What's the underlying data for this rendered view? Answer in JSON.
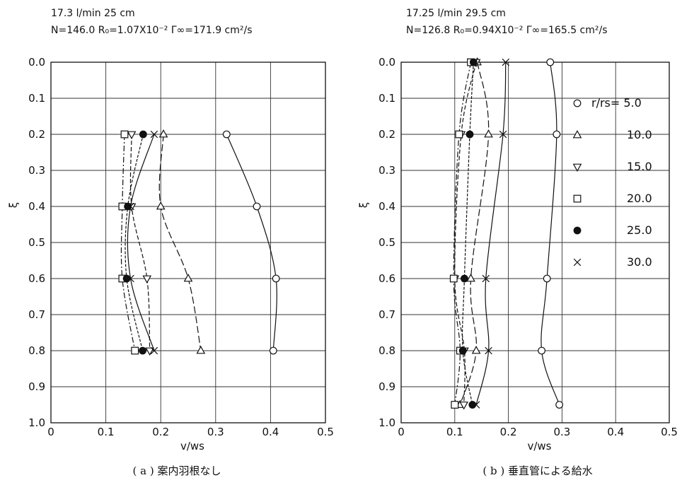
{
  "chart_data": [
    {
      "type": "line",
      "header": [
        "17.3 l/min      25 cm",
        "N=146.0    R₀=1.07X10⁻²   Γ∞=171.9 cm²/s"
      ],
      "xlabel": "v/ws",
      "ylabel": "ξ",
      "caption": "( a ) 案内羽根なし",
      "xlim": [
        0,
        0.5
      ],
      "ylim": [
        0,
        1.0
      ],
      "y_inverted": true,
      "x_ticks": [
        "0",
        "0.1",
        "0.2",
        "0.3",
        "0.4",
        "0.5"
      ],
      "y_ticks": [
        "0.0",
        "0.1",
        "0.2",
        "0.3",
        "0.4",
        "0.5",
        "0.6",
        "0.7",
        "0.8",
        "0.9",
        "1.0"
      ],
      "grid": true,
      "series": [
        {
          "marker": "circle-open",
          "dash": "",
          "points": [
            [
              0.32,
              0.2
            ],
            [
              0.375,
              0.4
            ],
            [
              0.41,
              0.6
            ],
            [
              0.405,
              0.8
            ]
          ]
        },
        {
          "marker": "triangle-up",
          "dash": "10 4",
          "points": [
            [
              0.205,
              0.2
            ],
            [
              0.2,
              0.4
            ],
            [
              0.25,
              0.6
            ],
            [
              0.273,
              0.8
            ]
          ]
        },
        {
          "marker": "triangle-down",
          "dash": "6 3",
          "points": [
            [
              0.147,
              0.2
            ],
            [
              0.147,
              0.4
            ],
            [
              0.175,
              0.6
            ],
            [
              0.18,
              0.8
            ]
          ]
        },
        {
          "marker": "square",
          "dash": "8 3 2 3",
          "points": [
            [
              0.134,
              0.2
            ],
            [
              0.13,
              0.4
            ],
            [
              0.13,
              0.6
            ],
            [
              0.153,
              0.8
            ]
          ]
        },
        {
          "marker": "circle-filled",
          "dash": "4 2",
          "points": [
            [
              0.168,
              0.2
            ],
            [
              0.14,
              0.4
            ],
            [
              0.138,
              0.6
            ],
            [
              0.167,
              0.8
            ]
          ]
        },
        {
          "marker": "cross",
          "dash": "",
          "points": [
            [
              0.188,
              0.2
            ],
            [
              0.145,
              0.4
            ],
            [
              0.145,
              0.6
            ],
            [
              0.188,
              0.8
            ]
          ]
        }
      ]
    },
    {
      "type": "line",
      "header": [
        "17.25 l/min     29.5 cm",
        "N=126.8   R₀=0.94X10⁻²  Γ∞=165.5 cm²/s"
      ],
      "xlabel": "v/ws",
      "ylabel": "ξ",
      "caption": "( b ) 垂直管による給水",
      "xlim": [
        0,
        0.5
      ],
      "ylim": [
        0,
        1.0
      ],
      "y_inverted": true,
      "x_ticks": [
        "0",
        "0.1",
        "0.2",
        "0.3",
        "0.4",
        "0.5"
      ],
      "y_ticks": [
        "0.0",
        "0.1",
        "0.2",
        "0.3",
        "0.4",
        "0.5",
        "0.6",
        "0.7",
        "0.8",
        "0.9",
        "1.0"
      ],
      "grid": true,
      "legend_position": "right",
      "legend": [
        {
          "marker": "circle-open",
          "label": "r/rs= 5.0"
        },
        {
          "marker": "triangle-up",
          "label": "10.0"
        },
        {
          "marker": "triangle-down",
          "label": "15.0"
        },
        {
          "marker": "square",
          "label": "20.0"
        },
        {
          "marker": "circle-filled",
          "label": "25.0"
        },
        {
          "marker": "cross",
          "label": "30.0"
        }
      ],
      "series": [
        {
          "marker": "circle-open",
          "dash": "",
          "points": [
            [
              0.278,
              0.0
            ],
            [
              0.29,
              0.2
            ],
            [
              0.272,
              0.6
            ],
            [
              0.262,
              0.8
            ],
            [
              0.295,
              0.95
            ]
          ]
        },
        {
          "marker": "triangle-up",
          "dash": "10 4",
          "points": [
            [
              0.142,
              0.0
            ],
            [
              0.163,
              0.2
            ],
            [
              0.13,
              0.6
            ],
            [
              0.14,
              0.8
            ],
            [
              0.11,
              0.95
            ]
          ]
        },
        {
          "marker": "triangle-down",
          "dash": "6 3",
          "points": [
            [
              0.14,
              0.0
            ],
            [
              0.112,
              0.2
            ],
            [
              0.1,
              0.6
            ],
            [
              0.118,
              0.8
            ],
            [
              0.117,
              0.95
            ]
          ]
        },
        {
          "marker": "square",
          "dash": "8 3 2 3",
          "points": [
            [
              0.13,
              0.0
            ],
            [
              0.108,
              0.2
            ],
            [
              0.098,
              0.6
            ],
            [
              0.11,
              0.8
            ],
            [
              0.1,
              0.95
            ]
          ]
        },
        {
          "marker": "circle-filled",
          "dash": "4 2",
          "points": [
            [
              0.135,
              0.0
            ],
            [
              0.128,
              0.2
            ],
            [
              0.118,
              0.6
            ],
            [
              0.115,
              0.8
            ],
            [
              0.133,
              0.95
            ]
          ]
        },
        {
          "marker": "cross",
          "dash": "",
          "points": [
            [
              0.195,
              0.0
            ],
            [
              0.19,
              0.2
            ],
            [
              0.158,
              0.6
            ],
            [
              0.163,
              0.8
            ],
            [
              0.14,
              0.95
            ]
          ]
        }
      ]
    }
  ]
}
